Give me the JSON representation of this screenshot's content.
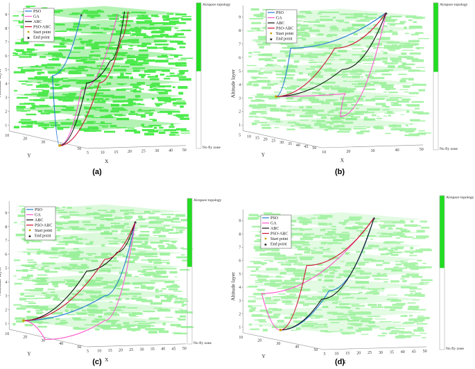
{
  "legend": [
    {
      "label": "PSO",
      "color": "#1f77d4",
      "kind": "line"
    },
    {
      "label": "GA",
      "color": "#ff55cc",
      "kind": "line"
    },
    {
      "label": "ABC",
      "color": "#111111",
      "kind": "line"
    },
    {
      "label": "PSO-ABC",
      "color": "#cc1133",
      "kind": "line"
    },
    {
      "label": "Start point",
      "color": "#c8a000",
      "kind": "marker"
    },
    {
      "label": "End point",
      "color": "#8b1a2a",
      "kind": "marker"
    }
  ],
  "colorbar": {
    "top_label": "Airspace topology",
    "bottom_label": "No fly zone",
    "color": "#22dd22"
  },
  "chart_data": [
    {
      "panel": "(a)",
      "type": "line3d",
      "zlabel": "Altitude layer",
      "xlabel": "X",
      "ylabel": "Y",
      "zticks": [
        "1",
        "2",
        "3",
        "4",
        "5",
        "6",
        "7",
        "8",
        "9"
      ],
      "xticks": [
        "5",
        "10",
        "15",
        "20",
        "25",
        "30",
        "40",
        "50"
      ],
      "yticks": [
        "10",
        "20",
        "30",
        "40",
        "50"
      ],
      "series": [
        {
          "name": "PSO",
          "path": [
            [
              0.3,
              0.98
            ],
            [
              0.26,
              0.5
            ],
            [
              0.42,
              0.08
            ]
          ]
        },
        {
          "name": "GA",
          "path": [
            [
              0.3,
              0.98
            ],
            [
              0.42,
              0.6
            ],
            [
              0.62,
              0.08
            ]
          ]
        },
        {
          "name": "ABC",
          "path": [
            [
              0.3,
              0.98
            ],
            [
              0.45,
              0.55
            ],
            [
              0.58,
              0.4
            ],
            [
              0.66,
              0.06
            ]
          ]
        },
        {
          "name": "PSO-ABC",
          "path": [
            [
              0.3,
              0.98
            ],
            [
              0.52,
              0.55
            ],
            [
              0.64,
              0.25
            ],
            [
              0.68,
              0.06
            ]
          ]
        }
      ]
    },
    {
      "panel": "(b)",
      "type": "line3d",
      "zlabel": "Altitude layer",
      "xlabel": "X",
      "ylabel": "Y",
      "zticks": [
        "1",
        "2",
        "3",
        "4",
        "5",
        "6",
        "7",
        "8",
        "9"
      ],
      "xticks": [
        "10",
        "20",
        "30",
        "40",
        "50"
      ],
      "yticks": [
        "5",
        "10",
        "15",
        "20",
        "25",
        "30",
        "35",
        "40",
        "45",
        "50"
      ],
      "series": [
        {
          "name": "PSO",
          "path": [
            [
              0.2,
              0.64
            ],
            [
              0.28,
              0.3
            ],
            [
              0.8,
              0.05
            ]
          ]
        },
        {
          "name": "GA",
          "path": [
            [
              0.2,
              0.64
            ],
            [
              0.58,
              0.62
            ],
            [
              0.55,
              0.78
            ],
            [
              0.8,
              0.05
            ]
          ]
        },
        {
          "name": "ABC",
          "path": [
            [
              0.2,
              0.64
            ],
            [
              0.56,
              0.45
            ],
            [
              0.8,
              0.05
            ]
          ]
        },
        {
          "name": "PSO-ABC",
          "path": [
            [
              0.2,
              0.64
            ],
            [
              0.52,
              0.3
            ],
            [
              0.8,
              0.05
            ]
          ]
        }
      ]
    },
    {
      "panel": "(c)",
      "type": "line3d",
      "zlabel": "Altitude layer",
      "xlabel": "X",
      "ylabel": "Y",
      "zticks": [
        "1",
        "2",
        "3",
        "4",
        "5",
        "6",
        "7",
        "8",
        "9"
      ],
      "xticks": [
        "5",
        "10",
        "15",
        "20",
        "25",
        "30",
        "35",
        "40",
        "45",
        "50"
      ],
      "yticks": [
        "10",
        "20",
        "30",
        "40",
        "50"
      ],
      "series": [
        {
          "name": "PSO",
          "path": [
            [
              0.1,
              0.82
            ],
            [
              0.55,
              0.65
            ],
            [
              0.72,
              0.14
            ]
          ]
        },
        {
          "name": "GA",
          "path": [
            [
              0.1,
              0.82
            ],
            [
              0.22,
              0.95
            ],
            [
              0.55,
              0.82
            ],
            [
              0.72,
              0.14
            ]
          ]
        },
        {
          "name": "ABC",
          "path": [
            [
              0.1,
              0.82
            ],
            [
              0.45,
              0.48
            ],
            [
              0.62,
              0.35
            ],
            [
              0.72,
              0.14
            ]
          ]
        },
        {
          "name": "PSO-ABC",
          "path": [
            [
              0.1,
              0.82
            ],
            [
              0.55,
              0.4
            ],
            [
              0.72,
              0.14
            ]
          ]
        }
      ]
    },
    {
      "panel": "(d)",
      "type": "line3d",
      "zlabel": "Altitude layer",
      "xlabel": "X",
      "ylabel": "Y",
      "zticks": [
        "1",
        "2",
        "3",
        "4",
        "5",
        "6",
        "7",
        "8",
        "9"
      ],
      "xticks": [
        "5",
        "10",
        "15",
        "20",
        "25",
        "30",
        "35",
        "40",
        "45",
        "50"
      ],
      "yticks": [
        "10",
        "20",
        "30",
        "40",
        "50"
      ],
      "series": [
        {
          "name": "PSO",
          "path": [
            [
              0.22,
              0.86
            ],
            [
              0.48,
              0.58
            ],
            [
              0.72,
              0.06
            ]
          ]
        },
        {
          "name": "GA",
          "path": [
            [
              0.22,
              0.86
            ],
            [
              0.12,
              0.6
            ],
            [
              0.72,
              0.06
            ]
          ]
        },
        {
          "name": "ABC",
          "path": [
            [
              0.22,
              0.86
            ],
            [
              0.44,
              0.64
            ],
            [
              0.72,
              0.06
            ]
          ]
        },
        {
          "name": "PSO-ABC",
          "path": [
            [
              0.22,
              0.86
            ],
            [
              0.36,
              0.4
            ],
            [
              0.72,
              0.06
            ]
          ]
        }
      ]
    }
  ]
}
